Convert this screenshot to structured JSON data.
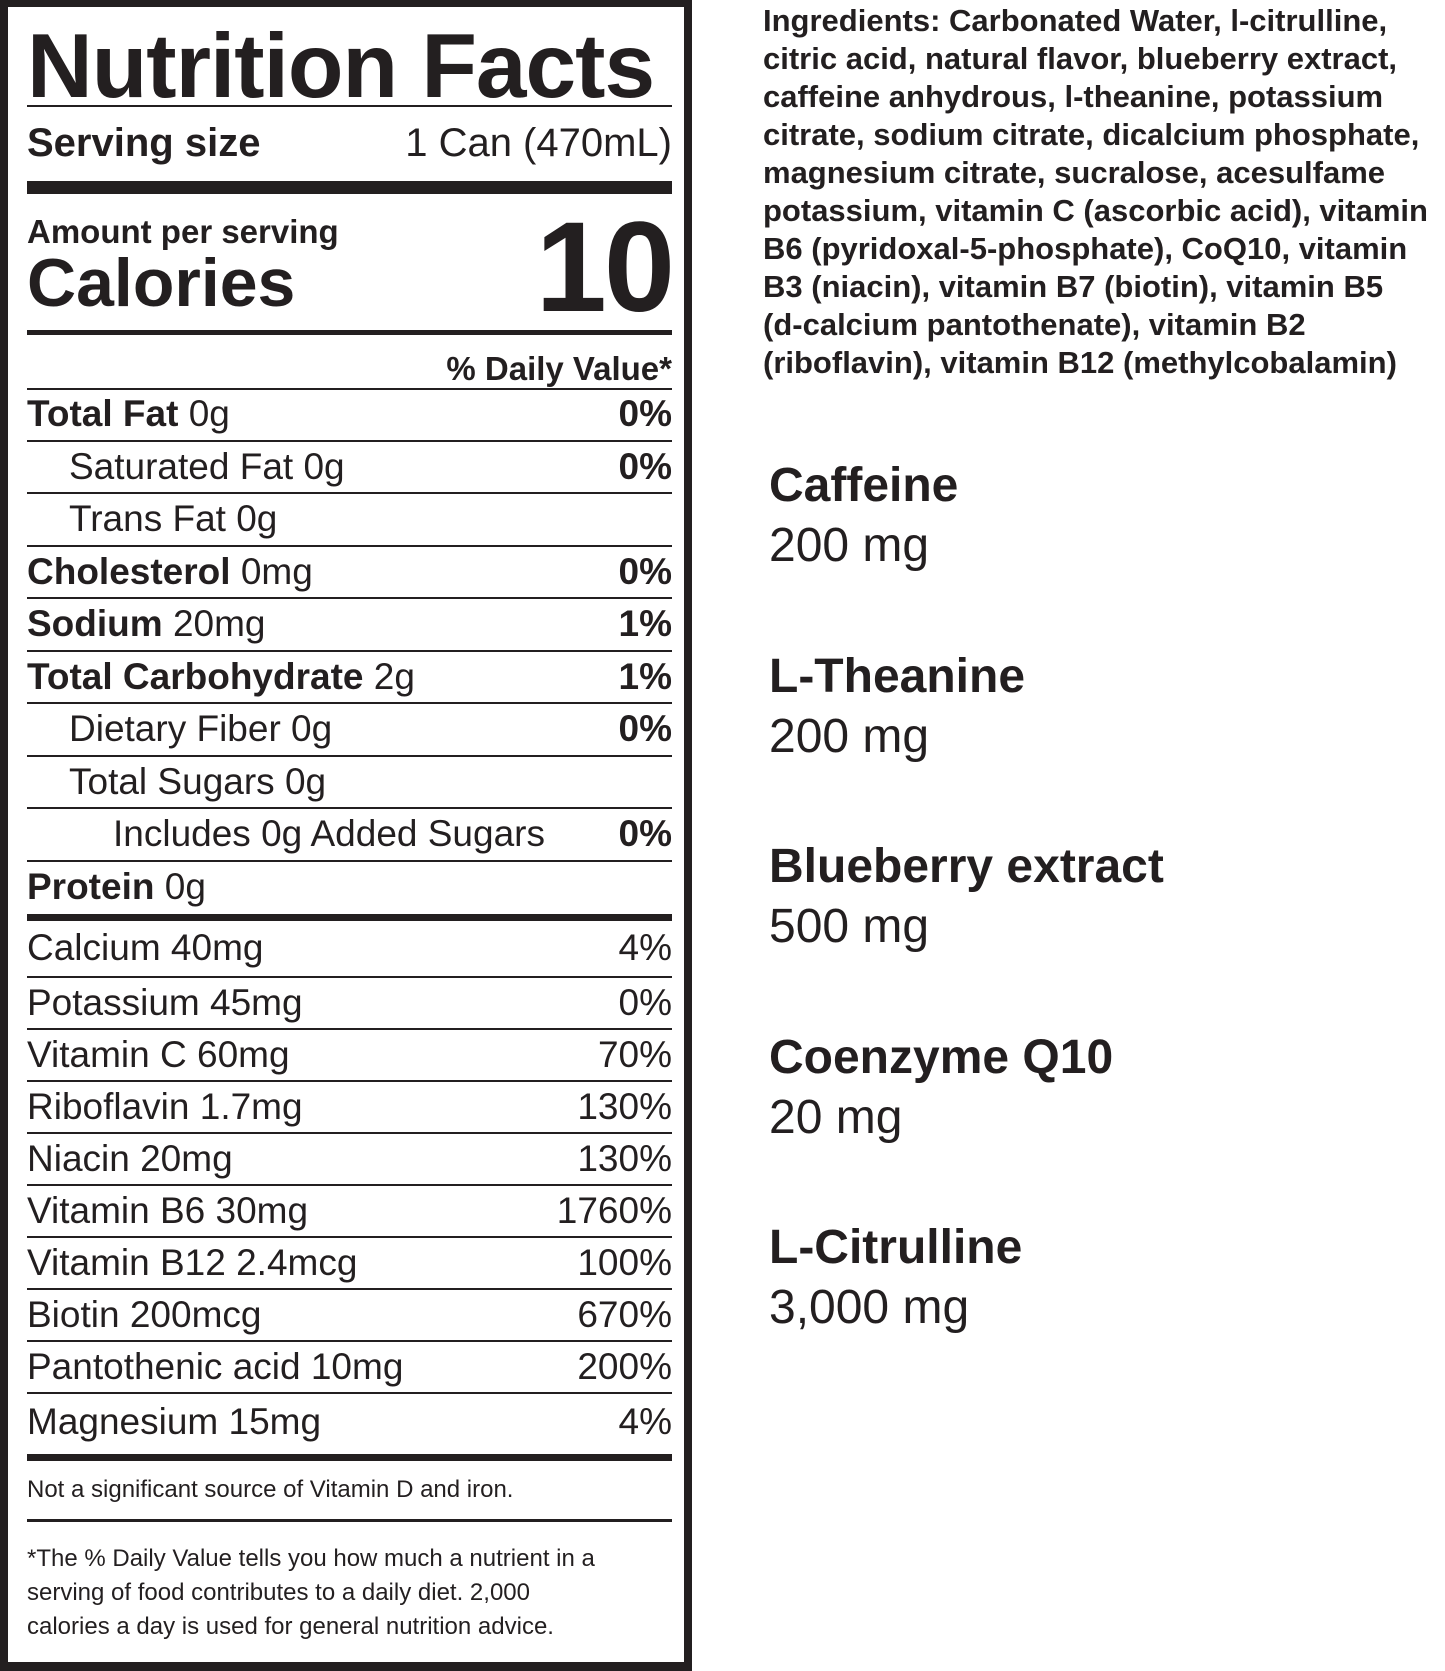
{
  "label": {
    "title": "Nutrition Facts",
    "serving_size_label": "Serving size",
    "serving_size_value": "1 Can (470mL)",
    "amount_per_serving": "Amount per serving",
    "calories_label": "Calories",
    "calories_value": "10",
    "daily_value_header": "% Daily Value*",
    "nutrients": [
      {
        "name": "Total Fat",
        "amount": "0g",
        "dv": "0%"
      },
      {
        "name": "Saturated Fat 0g",
        "amount": "",
        "dv": "0%"
      },
      {
        "name": "Trans Fat 0g",
        "amount": "",
        "dv": ""
      },
      {
        "name": "Cholesterol",
        "amount": "0mg",
        "dv": "0%"
      },
      {
        "name": "Sodium",
        "amount": "20mg",
        "dv": "1%"
      },
      {
        "name": "Total Carbohydrate",
        "amount": "2g",
        "dv": "1%"
      },
      {
        "name": "Dietary Fiber 0g",
        "amount": "",
        "dv": "0%"
      },
      {
        "name": "Total Sugars 0g",
        "amount": "",
        "dv": ""
      },
      {
        "name": "Includes 0g Added Sugars",
        "amount": "",
        "dv": "0%"
      },
      {
        "name": "Protein",
        "amount": "0g",
        "dv": ""
      }
    ],
    "vitamins": [
      {
        "name": "Calcium 40mg",
        "dv": "4%"
      },
      {
        "name": "Potassium 45mg",
        "dv": "0%"
      },
      {
        "name": "Vitamin C 60mg",
        "dv": "70%"
      },
      {
        "name": "Riboflavin 1.7mg",
        "dv": "130%"
      },
      {
        "name": "Niacin 20mg",
        "dv": "130%"
      },
      {
        "name": "Vitamin B6 30mg",
        "dv": "1760%"
      },
      {
        "name": "Vitamin B12 2.4mcg",
        "dv": "100%"
      },
      {
        "name": "Biotin 200mcg",
        "dv": "670%"
      },
      {
        "name": "Pantothenic acid 10mg",
        "dv": "200%"
      },
      {
        "name": "Magnesium 15mg",
        "dv": "4%"
      }
    ],
    "not_significant": "Not a significant source of Vitamin D and iron.",
    "footnote_lines": [
      "*The % Daily Value tells you how much a nutrient in a",
      "serving of food contributes to a daily diet. 2,000",
      "calories a day is used for general nutrition advice."
    ]
  },
  "ingredients_lines": [
    "Ingredients: Carbonated Water, l-citrulline,",
    "citric acid, natural flavor, blueberry extract,",
    "caffeine anhydrous, l-theanine, potassium",
    "citrate, sodium citrate, dicalcium phosphate,",
    "magnesium citrate, sucralose, acesulfame",
    "potassium, vitamin C (ascorbic acid), vitamin",
    "B6 (pyridoxal-5-phosphate), CoQ10, vitamin",
    "B3 (niacin), vitamin B7 (biotin), vitamin B5",
    "(d-calcium pantothenate), vitamin B2",
    "(riboflavin), vitamin B12 (methylcobalamin)"
  ],
  "actives": [
    {
      "name": "Caffeine",
      "amount": "200 mg"
    },
    {
      "name": "L-Theanine",
      "amount": "200 mg"
    },
    {
      "name": "Blueberry extract",
      "amount": "500 mg"
    },
    {
      "name": "Coenzyme Q10",
      "amount": "20 mg"
    },
    {
      "name": "L-Citrulline",
      "amount": "3,000 mg"
    }
  ]
}
